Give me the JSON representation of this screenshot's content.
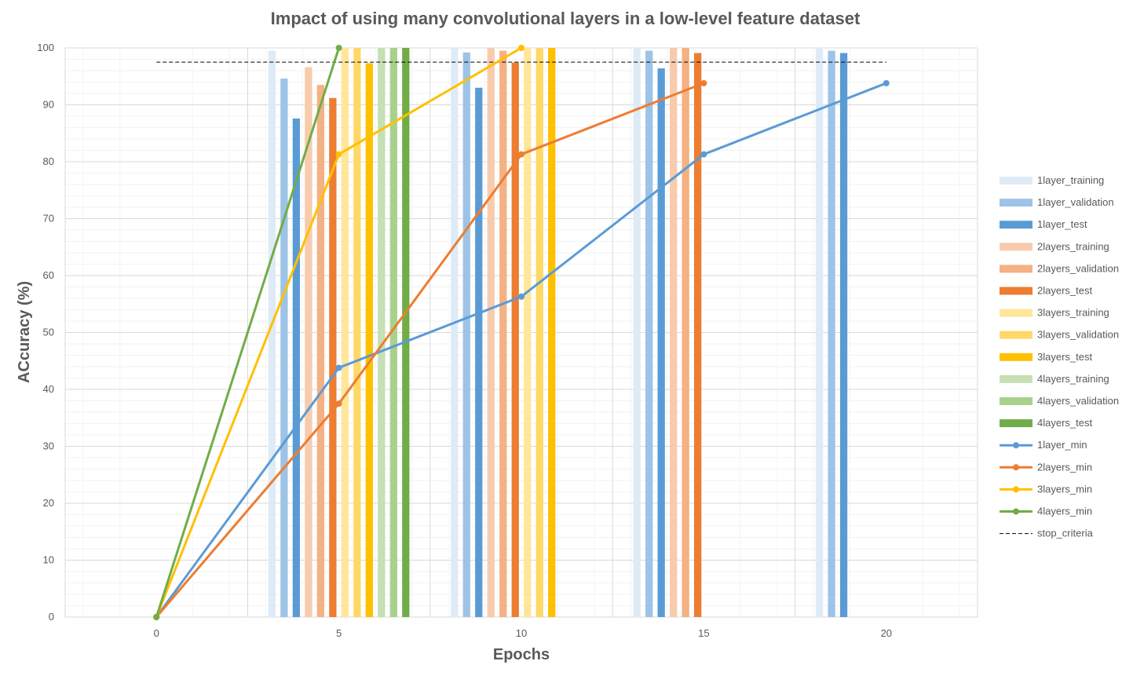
{
  "chart_data": {
    "type": "bar",
    "title": "Impact of using many convolutional layers in a low-level feature dataset",
    "xlabel": "Epochs",
    "ylabel": "ACcuracy (%)",
    "xlim": [
      -2.5,
      22.5
    ],
    "ylim": [
      0,
      100
    ],
    "x_ticks": [
      0,
      5,
      10,
      15,
      20
    ],
    "y_ticks": [
      0,
      10,
      20,
      30,
      40,
      50,
      60,
      70,
      80,
      90,
      100
    ],
    "grid": true,
    "legend_position": "right",
    "bar_categories": [
      5,
      10,
      15,
      20
    ],
    "bar_series": [
      {
        "name": "1layer_training",
        "color": "#DEEBF7",
        "values": [
          99.5,
          100,
          100,
          100
        ]
      },
      {
        "name": "1layer_validation",
        "color": "#9DC3E6",
        "values": [
          94.6,
          99.2,
          99.5,
          99.5
        ]
      },
      {
        "name": "1layer_test",
        "color": "#5B9BD5",
        "values": [
          87.6,
          93.0,
          96.4,
          99.1
        ]
      },
      {
        "name": "2layers_training",
        "color": "#F8CBAD",
        "values": [
          96.6,
          100,
          100,
          null
        ]
      },
      {
        "name": "2layers_validation",
        "color": "#F4B183",
        "values": [
          93.5,
          99.5,
          100,
          null
        ]
      },
      {
        "name": "2layers_test",
        "color": "#ED7D31",
        "values": [
          91.2,
          97.4,
          99.1,
          null
        ]
      },
      {
        "name": "3layers_training",
        "color": "#FFE699",
        "values": [
          100,
          100,
          null,
          null
        ]
      },
      {
        "name": "3layers_validation",
        "color": "#FFD966",
        "values": [
          100,
          100,
          null,
          null
        ]
      },
      {
        "name": "3layers_test",
        "color": "#FFC000",
        "values": [
          97.3,
          100,
          null,
          null
        ]
      },
      {
        "name": "4layers_training",
        "color": "#C5E0B4",
        "values": [
          100,
          null,
          null,
          null
        ]
      },
      {
        "name": "4layers_validation",
        "color": "#A9D18E",
        "values": [
          100,
          null,
          null,
          null
        ]
      },
      {
        "name": "4layers_test",
        "color": "#70AD47",
        "values": [
          100,
          null,
          null,
          null
        ]
      }
    ],
    "line_series": [
      {
        "name": "1layer_min",
        "color": "#5B9BD5",
        "x": [
          0,
          5,
          10,
          15,
          20
        ],
        "y": [
          0,
          43.8,
          56.3,
          81.3,
          93.8
        ]
      },
      {
        "name": "2layers_min",
        "color": "#ED7D31",
        "x": [
          0,
          5,
          10,
          15
        ],
        "y": [
          0,
          37.5,
          81.3,
          93.8
        ]
      },
      {
        "name": "3layers_min",
        "color": "#FFC000",
        "x": [
          0,
          5,
          10
        ],
        "y": [
          0,
          81.3,
          100
        ]
      },
      {
        "name": "4layers_min",
        "color": "#70AD47",
        "x": [
          0,
          5
        ],
        "y": [
          0,
          100
        ]
      }
    ],
    "reference_lines": [
      {
        "name": "stop_criteria",
        "color": "#000000",
        "style": "dashed",
        "y": 97.5,
        "x_range": [
          0,
          20
        ]
      }
    ]
  }
}
